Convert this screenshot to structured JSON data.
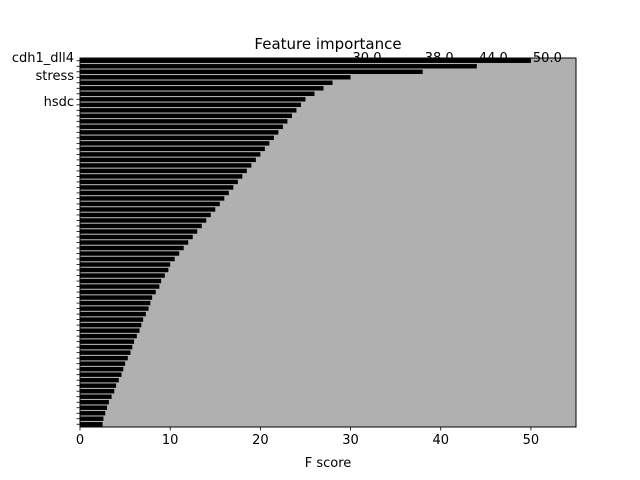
{
  "chart_data": {
    "type": "bar",
    "orientation": "horizontal",
    "title": "Feature importance",
    "xlabel": "F score",
    "ylabel": "",
    "xlim": [
      0,
      55
    ],
    "xticks": [
      0,
      10,
      20,
      30,
      40,
      50
    ],
    "grid": false,
    "legend": "none",
    "background_color": "#b0b0b0",
    "bar_color": "#000000",
    "visible_value_labels": [
      "30.0",
      "38.0",
      "44.0",
      "50.0"
    ],
    "visible_feature_labels": [
      "cdh1_dll4",
      "stress",
      "hsdc"
    ],
    "values": [
      2.5,
      2.6,
      2.8,
      3.0,
      3.2,
      3.5,
      3.8,
      4.0,
      4.3,
      4.6,
      4.8,
      5.0,
      5.3,
      5.6,
      5.8,
      6.0,
      6.3,
      6.6,
      6.8,
      7.0,
      7.3,
      7.6,
      7.8,
      8.0,
      8.4,
      8.8,
      9.0,
      9.4,
      9.8,
      10.0,
      10.5,
      11.0,
      11.5,
      12.0,
      12.5,
      13.0,
      13.5,
      14.0,
      14.5,
      15.0,
      15.5,
      16.0,
      16.5,
      17.0,
      17.5,
      18.0,
      18.5,
      19.0,
      19.5,
      20.0,
      20.5,
      21.0,
      21.5,
      22.0,
      22.5,
      23.0,
      23.5,
      24.0,
      24.5,
      25.0,
      26.0,
      27.0,
      28.0,
      30.0,
      38.0,
      44.0,
      50.0
    ]
  }
}
